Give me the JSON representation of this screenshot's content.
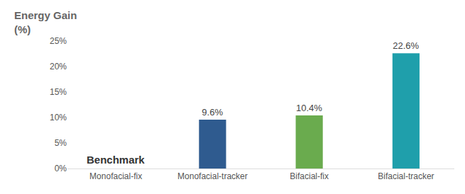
{
  "chart_data": {
    "type": "bar",
    "ylabel": [
      "Energy Gain",
      "(%)"
    ],
    "categories": [
      "Monofacial-fix",
      "Monofacial-tracker",
      "Bifacial-fix",
      "Bifacial-tracker"
    ],
    "values": [
      0,
      9.6,
      10.4,
      22.6
    ],
    "value_labels": [
      null,
      "9.6%",
      "10.4%",
      "22.6%"
    ],
    "data_labels": true,
    "colors": [
      "#2f5b8f",
      "#2f5b8f",
      "#6aab4e",
      "#1f9fab"
    ],
    "ylim": [
      0,
      25
    ],
    "yticks": [
      {
        "value": 0,
        "label": "0%"
      },
      {
        "value": 5,
        "label": "5%"
      },
      {
        "value": 10,
        "label": "10%"
      },
      {
        "value": 15,
        "label": "15%"
      },
      {
        "value": 20,
        "label": "20%"
      },
      {
        "value": 25,
        "label": "25%"
      }
    ],
    "annotations": [
      {
        "text": "Benchmark",
        "category": "Monofacial-fix",
        "y": 0
      }
    ],
    "grid": false
  }
}
